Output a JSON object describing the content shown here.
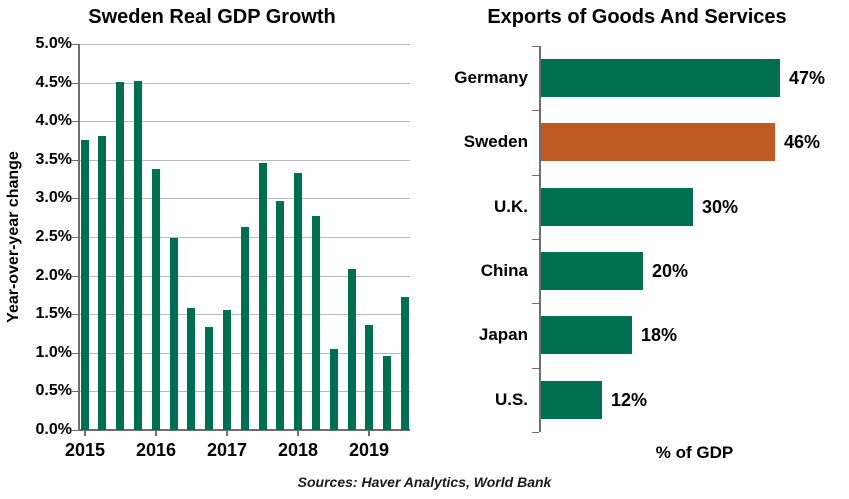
{
  "colors": {
    "green": "#006e51",
    "orange": "#c05a25",
    "gridline": "#b9b9b9",
    "axis": "#6e6e6e",
    "text": "#000000"
  },
  "footer": {
    "sources_label": "Sources: Haver Analytics, World Bank"
  },
  "chart_data": [
    {
      "type": "bar",
      "title": "Sweden Real GDP Growth",
      "ylabel": "Year-over-year change",
      "xlabel": "",
      "ylim": [
        0,
        5
      ],
      "grid": true,
      "bar_color": "#006e51",
      "ytick_labels": [
        "5.0%",
        "4.5%",
        "4.0%",
        "3.5%",
        "3.0%",
        "2.5%",
        "2.0%",
        "1.5%",
        "1.0%",
        "0.5%",
        "0.0%"
      ],
      "x": [
        "2015Q1",
        "2015Q2",
        "2015Q3",
        "2015Q4",
        "2016Q1",
        "2016Q2",
        "2016Q3",
        "2016Q4",
        "2017Q1",
        "2017Q2",
        "2017Q3",
        "2017Q4",
        "2018Q1",
        "2018Q2",
        "2018Q3",
        "2018Q4",
        "2019Q1",
        "2019Q2",
        "2019Q3"
      ],
      "values": [
        3.75,
        3.81,
        4.51,
        4.52,
        3.38,
        2.49,
        1.58,
        1.33,
        1.55,
        2.63,
        3.46,
        2.97,
        3.33,
        2.77,
        1.05,
        2.09,
        1.36,
        0.96,
        1.72
      ],
      "year_labels": [
        "2015",
        "2016",
        "2017",
        "2018",
        "2019"
      ],
      "year_tick_indices": [
        0,
        4,
        8,
        12,
        16
      ]
    },
    {
      "type": "bar",
      "orientation": "horizontal",
      "title": "Exports of Goods And Services",
      "xlabel": "% of GDP",
      "categories": [
        "Germany",
        "Sweden",
        "U.K.",
        "China",
        "Japan",
        "U.S."
      ],
      "values": [
        47,
        46,
        30,
        20,
        18,
        12
      ],
      "value_labels": [
        "47%",
        "46%",
        "30%",
        "20%",
        "18%",
        "12%"
      ],
      "bar_colors": [
        "#006e51",
        "#c05a25",
        "#006e51",
        "#006e51",
        "#006e51",
        "#006e51"
      ],
      "highlight_index": 1,
      "xmax": 50
    }
  ]
}
